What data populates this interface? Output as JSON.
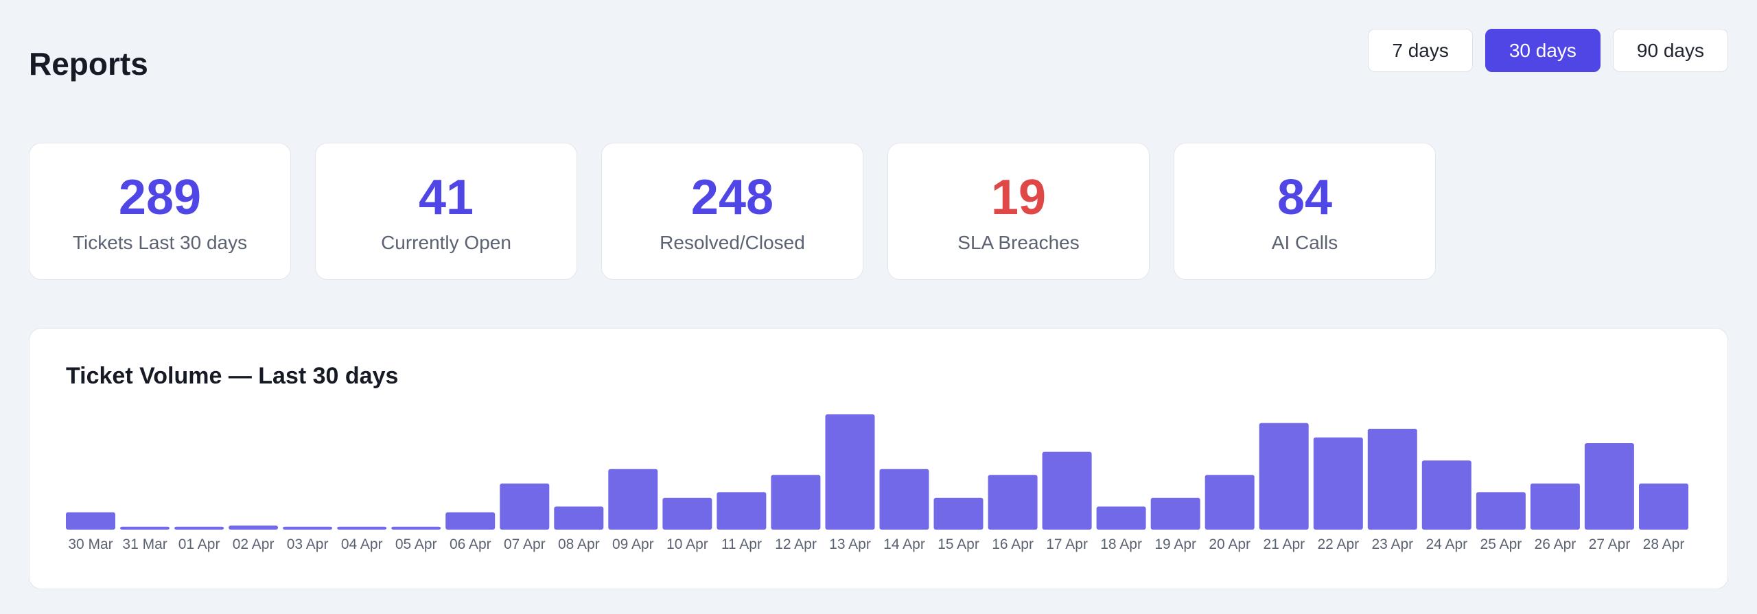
{
  "header": {
    "title": "Reports"
  },
  "range_selector": {
    "options": [
      {
        "label": "7 days",
        "active": false
      },
      {
        "label": "30 days",
        "active": true
      },
      {
        "label": "90 days",
        "active": false
      }
    ]
  },
  "stats": [
    {
      "value": "289",
      "label": "Tickets Last 30 days",
      "color": "#4f46e5"
    },
    {
      "value": "41",
      "label": "Currently Open",
      "color": "#4f46e5"
    },
    {
      "value": "248",
      "label": "Resolved/Closed",
      "color": "#4f46e5"
    },
    {
      "value": "19",
      "label": "SLA Breaches",
      "color": "#e04848"
    },
    {
      "value": "84",
      "label": "AI Calls",
      "color": "#4f46e5"
    }
  ],
  "colors": {
    "accent": "#4f46e5",
    "bar": "#7269e8",
    "danger": "#e04848"
  },
  "chart_data": {
    "type": "bar",
    "title": "Ticket Volume — Last 30 days",
    "xlabel": "",
    "ylabel": "",
    "grid": false,
    "legend": "none",
    "ylim": [
      0,
      20
    ],
    "categories": [
      "30 Mar",
      "31 Mar",
      "01 Apr",
      "02 Apr",
      "03 Apr",
      "04 Apr",
      "05 Apr",
      "06 Apr",
      "07 Apr",
      "08 Apr",
      "09 Apr",
      "10 Apr",
      "11 Apr",
      "12 Apr",
      "13 Apr",
      "14 Apr",
      "15 Apr",
      "16 Apr",
      "17 Apr",
      "18 Apr",
      "19 Apr",
      "20 Apr",
      "21 Apr",
      "22 Apr",
      "23 Apr",
      "24 Apr",
      "25 Apr",
      "26 Apr",
      "27 Apr",
      "28 Apr"
    ],
    "values": [
      3,
      0.5,
      0.5,
      0.7,
      0.5,
      0.5,
      0.5,
      3,
      8,
      4,
      10.5,
      5.5,
      6.5,
      9.5,
      20,
      10.5,
      5.5,
      9.5,
      13.5,
      4,
      5.5,
      9.5,
      18.5,
      16,
      17.5,
      12,
      6.5,
      8,
      15,
      8
    ]
  }
}
